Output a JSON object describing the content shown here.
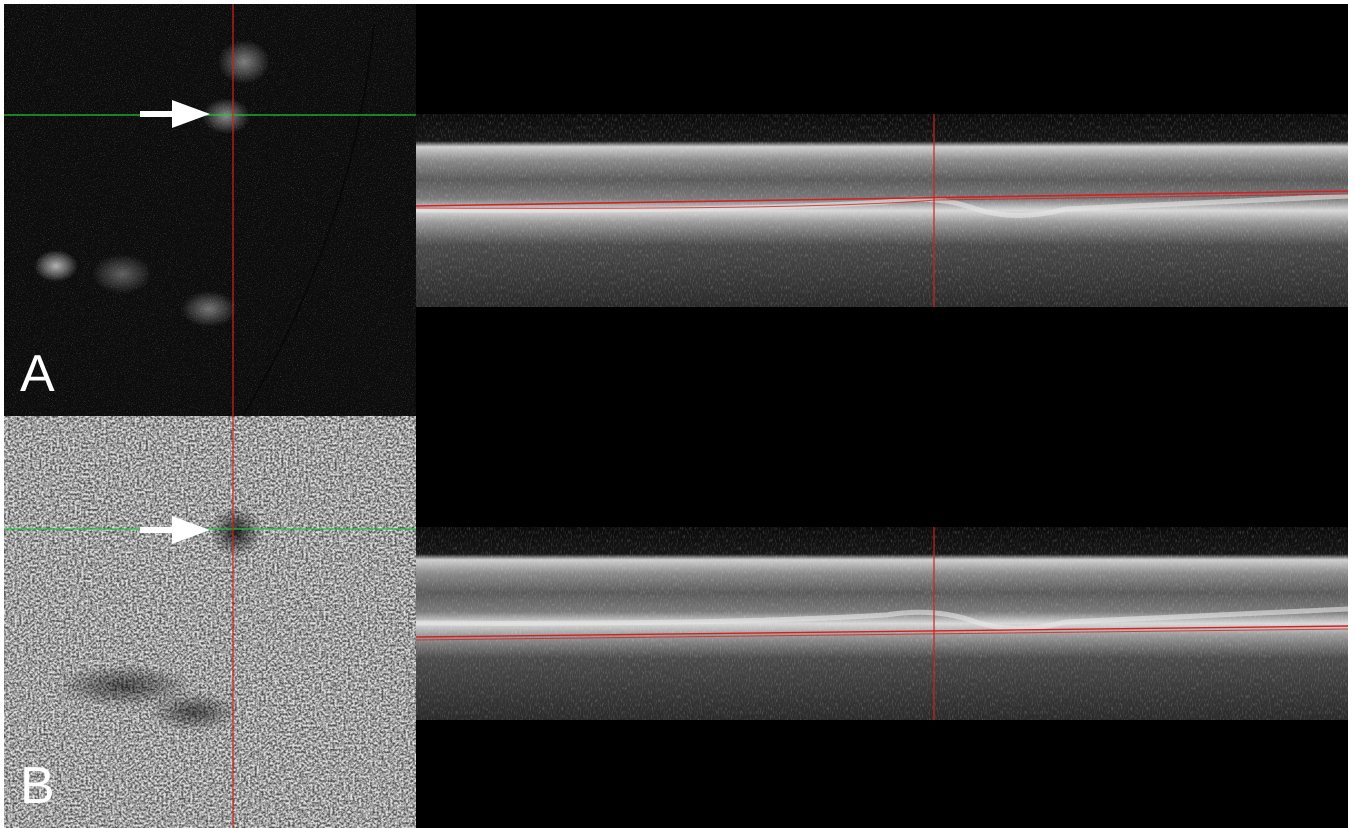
{
  "panels": [
    {
      "label": "A",
      "enface_style": "flow",
      "arrow": "white-arrow",
      "crosshair_colors": {
        "horizontal": "#22c43a",
        "vertical": "#d42020"
      },
      "segmentation_color": "#d42020"
    },
    {
      "label": "B",
      "enface_style": "structural",
      "arrow": "white-arrow",
      "crosshair_colors": {
        "horizontal": "#22c43a",
        "vertical": "#d42020"
      },
      "segmentation_color": "#d42020"
    }
  ],
  "figure": {
    "background": "#000000"
  }
}
